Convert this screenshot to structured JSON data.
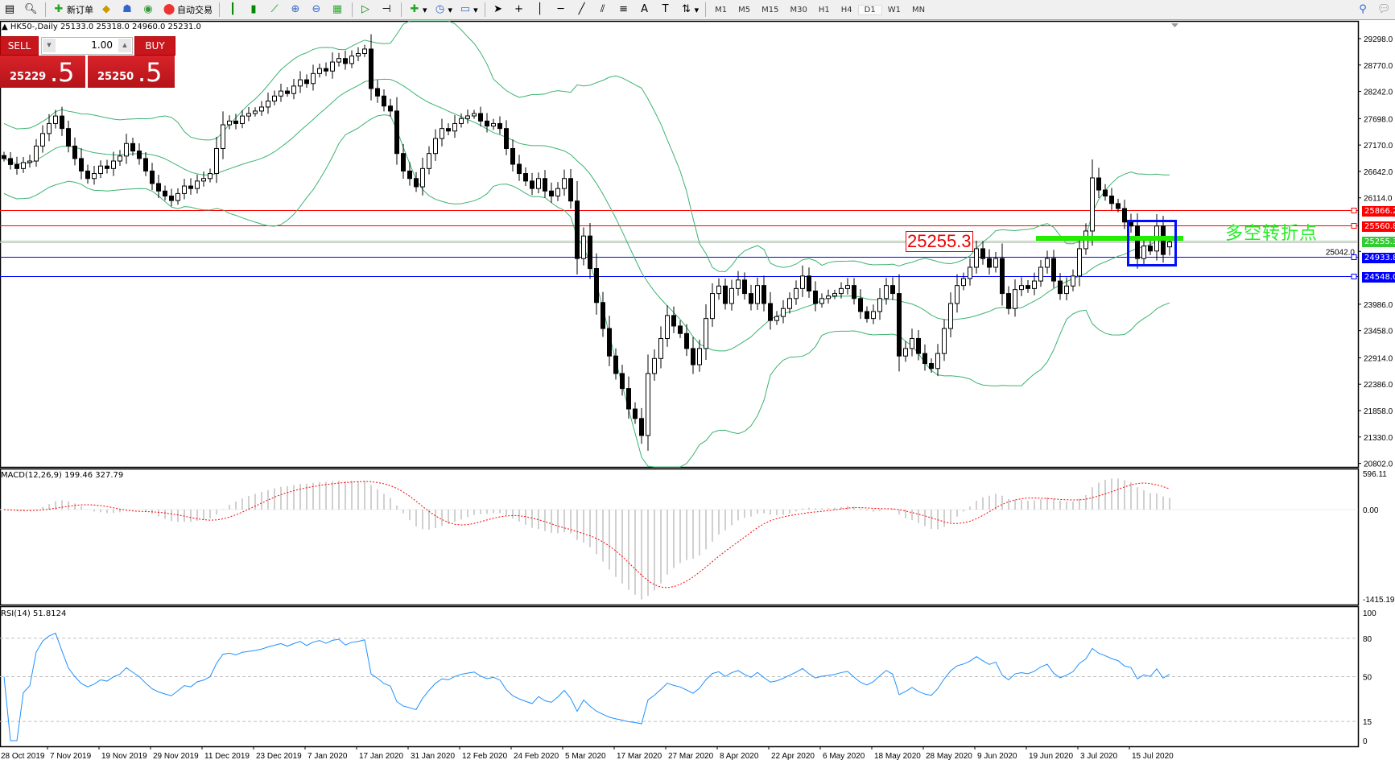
{
  "toolbar": {
    "new_order": "新订单",
    "auto_trading": "自动交易",
    "timeframes": [
      "M1",
      "M5",
      "M15",
      "M30",
      "H1",
      "H4",
      "D1",
      "W1",
      "MN"
    ],
    "active_timeframe": "D1"
  },
  "chart": {
    "header": "HK50-,Daily  25133.0 25318.0 24960.0 25231.0",
    "symbol": "HK50-",
    "period": "Daily"
  },
  "trade_panel": {
    "sell_label": "SELL",
    "buy_label": "BUY",
    "lot": "1.00",
    "sell_price_main": "25229",
    "sell_price_pips": ".5",
    "buy_price_main": "25250",
    "buy_price_pips": ".5"
  },
  "price_axis": [
    "29298.0",
    "28770.0",
    "28242.0",
    "27698.0",
    "27170.0",
    "26642.0",
    "26114.0",
    "25042.0",
    "23986.0",
    "23458.0",
    "22914.0",
    "22386.0",
    "21858.0",
    "21330.0",
    "20802.0"
  ],
  "levels": [
    {
      "value": "25866.2",
      "color": "#ff0000"
    },
    {
      "value": "25560.8",
      "color": "#ff0000"
    },
    {
      "value": "25255.3",
      "color": "#33cc33"
    },
    {
      "value": "24933.8",
      "color": "#0000ff"
    },
    {
      "value": "24548.0",
      "color": "#0000ff"
    }
  ],
  "annotations": {
    "price_label": "25255.3",
    "pivot_text": "多空转折点",
    "highlight_color": "#0010ff",
    "pivot_bar_color": "#22ee00"
  },
  "macd": {
    "label": "MACD(12,26,9) 199.46 327.79",
    "axis": [
      "596.11",
      "0.00",
      "-1415.19"
    ],
    "signal_color": "#ff0000",
    "histogram_color": "#c0c0c0"
  },
  "rsi": {
    "label": "RSI(14) 51.8124",
    "axis": [
      "100",
      "80",
      "50",
      "15",
      "0"
    ],
    "line_color": "#1e90ff"
  },
  "date_axis": [
    "28 Oct 2019",
    "7 Nov 2019",
    "19 Nov 2019",
    "29 Nov 2019",
    "11 Dec 2019",
    "23 Dec 2019",
    "7 Jan 2020",
    "17 Jan 2020",
    "31 Jan 2020",
    "12 Feb 2020",
    "24 Feb 2020",
    "5 Mar 2020",
    "17 Mar 2020",
    "27 Mar 2020",
    "8 Apr 2020",
    "22 Apr 2020",
    "6 May 2020",
    "18 May 2020",
    "28 May 2020",
    "9 Jun 2020",
    "19 Jun 2020",
    "3 Jul 2020",
    "15 Jul 2020"
  ],
  "chart_data": {
    "type": "candlestick",
    "indicators": [
      "Bollinger Bands",
      "MACD(12,26,9)",
      "RSI(14)"
    ],
    "last_bar": {
      "open": 25133.0,
      "high": 25318.0,
      "low": 24960.0,
      "close": 25231.0
    },
    "closes": [
      26900,
      26780,
      26700,
      26820,
      26850,
      27150,
      27400,
      27600,
      27750,
      27500,
      27150,
      26900,
      26650,
      26500,
      26600,
      26750,
      26700,
      26850,
      26950,
      27200,
      27050,
      26900,
      26650,
      26400,
      26250,
      26150,
      26060,
      26200,
      26350,
      26300,
      26450,
      26500,
      26600,
      27100,
      27575,
      27650,
      27600,
      27750,
      27800,
      27850,
      27930,
      28050,
      28150,
      28250,
      28200,
      28350,
      28475,
      28400,
      28600,
      28700,
      28650,
      28830,
      28900,
      28800,
      28950,
      29000,
      29090,
      28300,
      28150,
      27950,
      27850,
      27000,
      26650,
      26500,
      26335,
      26700,
      27000,
      27300,
      27500,
      27450,
      27600,
      27700,
      27752,
      27800,
      27650,
      27550,
      27600,
      27500,
      27100,
      26786,
      26600,
      26450,
      26300,
      26500,
      26250,
      26150,
      26300,
      26500,
      26050,
      24900,
      25350,
      24700,
      24020,
      23500,
      22950,
      22600,
      22300,
      21890,
      21700,
      21360,
      22600,
      22900,
      23300,
      23760,
      23550,
      23400,
      23100,
      22776,
      23100,
      23700,
      24200,
      24350,
      24000,
      24300,
      24470,
      24200,
      24000,
      24360,
      24000,
      23660,
      23740,
      23900,
      24100,
      24300,
      24550,
      24250,
      24000,
      24100,
      24150,
      24200,
      24300,
      24360,
      24100,
      23840,
      23700,
      23840,
      24100,
      24360,
      24200,
      22950,
      23100,
      23300,
      23000,
      22800,
      22700,
      23000,
      23500,
      24000,
      24360,
      24500,
      24725,
      25096,
      24900,
      24725,
      24900,
      24200,
      23900,
      24280,
      24360,
      24300,
      24450,
      24725,
      24900,
      24450,
      24200,
      24350,
      24550,
      25096,
      25450,
      26512,
      26270,
      26150,
      26000,
      25900,
      25630,
      25550,
      24900,
      25150,
      25050,
      25550,
      24980,
      25231
    ],
    "price_range": [
      20802.0,
      29298.0
    ],
    "bands_color": "#3cb371"
  }
}
